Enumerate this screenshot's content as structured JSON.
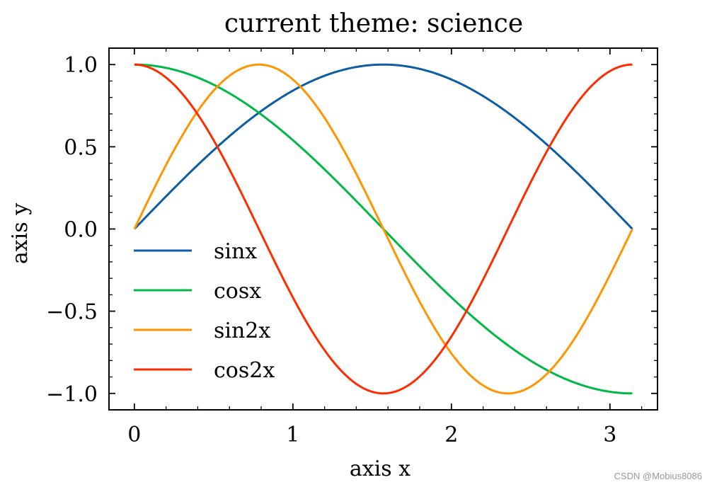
{
  "chart_data": {
    "type": "line",
    "title": "current theme: science",
    "xlabel": "axis x",
    "ylabel": "axis y",
    "xlim": [
      -0.16,
      3.3
    ],
    "ylim": [
      -1.1,
      1.1
    ],
    "x_ticks": [
      0,
      1,
      2,
      3
    ],
    "x_tick_labels": [
      "0",
      "1",
      "2",
      "3"
    ],
    "y_ticks": [
      -1.0,
      -0.5,
      0.0,
      0.5,
      1.0
    ],
    "y_tick_labels": [
      "−1.0",
      "−0.5",
      "0.0",
      "0.5",
      "1.0"
    ],
    "x_range": [
      0,
      3.1416
    ],
    "grid": false,
    "legend_position": "center-left",
    "series": [
      {
        "name": "sinx",
        "function": "sin(x)",
        "color": "#0c5da5"
      },
      {
        "name": "cosx",
        "function": "cos(x)",
        "color": "#00b945"
      },
      {
        "name": "sin2x",
        "function": "sin(2x)",
        "color": "#ff9500"
      },
      {
        "name": "cos2x",
        "function": "cos(2x)",
        "color": "#ff2c00"
      }
    ]
  },
  "watermark": "CSDN @Mobius8086"
}
